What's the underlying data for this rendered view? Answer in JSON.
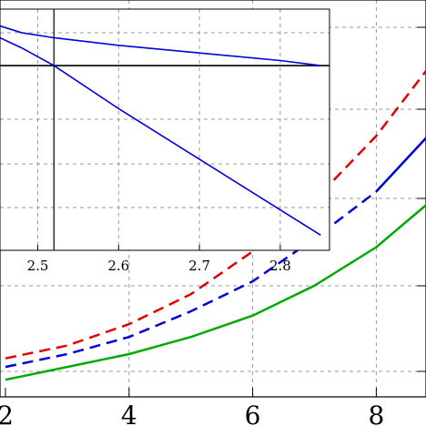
{
  "chart_data": [
    {
      "type": "line",
      "title": "",
      "xlabel": "",
      "ylabel": "",
      "xlim": [
        2,
        8.9
      ],
      "ylim": [
        0,
        1
      ],
      "grid": true,
      "x_ticks": [
        {
          "value": 2,
          "label": "2"
        },
        {
          "value": 4,
          "label": "4"
        },
        {
          "value": 6,
          "label": "6"
        },
        {
          "value": 8,
          "label": "8"
        }
      ],
      "series": [
        {
          "color": "#e00000",
          "style": "dashed",
          "x": [
            2.0,
            3.0,
            4.0,
            5.0,
            6.0,
            7.0,
            8.0,
            8.9
          ],
          "y": [
            0.09,
            0.12,
            0.17,
            0.24,
            0.34,
            0.46,
            0.61,
            0.78
          ]
        },
        {
          "color": "#0000dd",
          "style": "dashed",
          "x": [
            2.0,
            3.0,
            4.0,
            5.0,
            6.0,
            7.0,
            8.0
          ],
          "y": [
            0.07,
            0.1,
            0.14,
            0.2,
            0.27,
            0.37,
            0.48
          ]
        },
        {
          "color": "#0000dd",
          "style": "solid",
          "x": [
            8.0,
            8.9
          ],
          "y": [
            0.48,
            0.62
          ]
        },
        {
          "color": "#00aa00",
          "style": "solid",
          "x": [
            2.0,
            3.0,
            4.0,
            5.0,
            6.0,
            7.0,
            8.0,
            8.9
          ],
          "y": [
            0.04,
            0.07,
            0.1,
            0.14,
            0.19,
            0.26,
            0.35,
            0.46
          ]
        }
      ]
    },
    {
      "type": "line",
      "title": "",
      "xlabel": "",
      "ylabel": "",
      "xlim": [
        2.44,
        2.86
      ],
      "ylim": [
        0,
        1
      ],
      "grid": true,
      "x_ticks": [
        {
          "value": 2.5,
          "label": "2.5"
        },
        {
          "value": 2.6,
          "label": "2.6"
        },
        {
          "value": 2.7,
          "label": "2.7"
        },
        {
          "value": 2.8,
          "label": "2.8"
        }
      ],
      "reference_lines": {
        "horizontal_y": 0.73,
        "vertical_x": 2.52
      },
      "series": [
        {
          "color": "#0000dd",
          "style": "solid",
          "x": [
            2.44,
            2.48,
            2.52,
            2.6,
            2.7,
            2.8,
            2.85
          ],
          "y": [
            0.9,
            0.86,
            0.84,
            0.81,
            0.78,
            0.75,
            0.73
          ]
        },
        {
          "color": "#0000dd",
          "style": "solid",
          "x": [
            2.44,
            2.48,
            2.52,
            2.6,
            2.7,
            2.8,
            2.85
          ],
          "y": [
            0.86,
            0.8,
            0.73,
            0.56,
            0.36,
            0.16,
            0.06
          ]
        }
      ]
    }
  ]
}
